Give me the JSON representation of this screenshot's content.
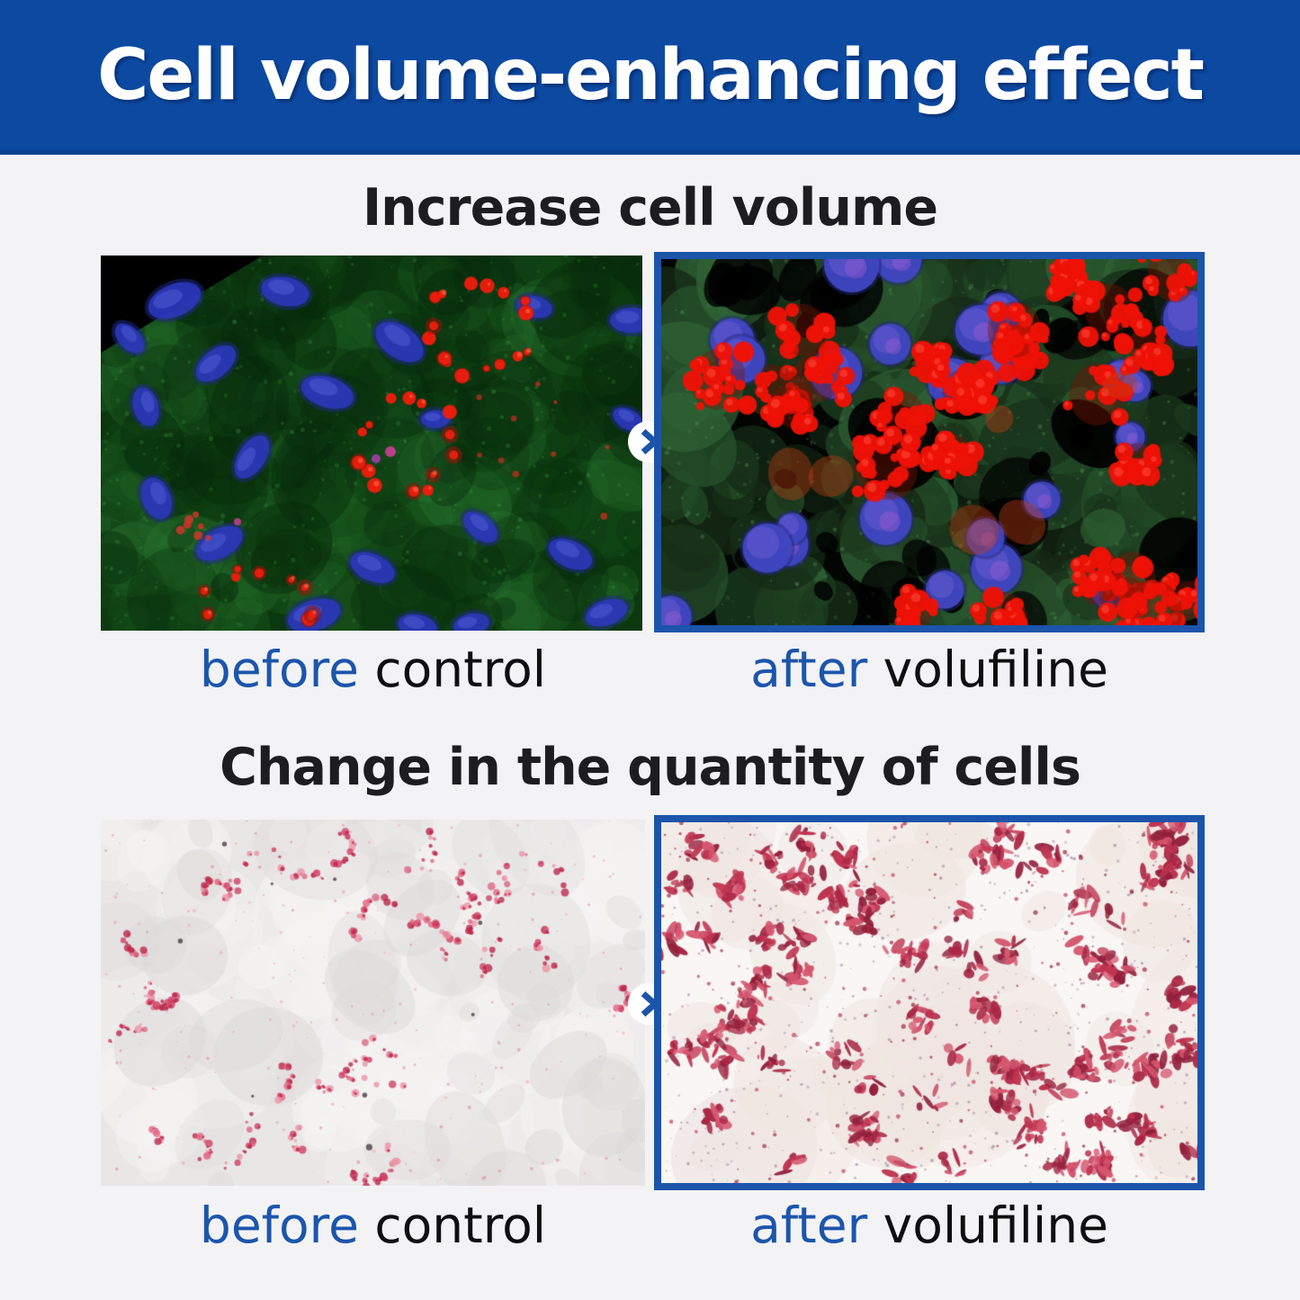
{
  "header": {
    "title": "Cell volume-enhancing effect"
  },
  "colors": {
    "banner_blue": "#0c4aa2",
    "accent_blue": "#1c55ac",
    "panel_border_blue": "#1c54ab",
    "background": "#f3f3f5",
    "title_text": "#1d1d1f",
    "label_text": "#0f0f10"
  },
  "icons": {
    "chevron_right": "❯"
  },
  "sections": [
    {
      "title": "Increase cell volume",
      "before_label": {
        "highlight": "before",
        "name": "control"
      },
      "after_label": {
        "highlight": "after",
        "name": "volufiline"
      },
      "panels": [
        {
          "alt": "Fluorescence micrograph (control): green cytoplasm, scattered blue nuclei, few small rings of red lipid droplets"
        },
        {
          "alt": "Fluorescence micrograph (after volufiline): abundant large red lipid droplet clusters around blue nuclei on dark green background"
        }
      ]
    },
    {
      "title": "Change in the quantity of cells",
      "before_label": {
        "highlight": "before",
        "name": "control"
      },
      "after_label": {
        "highlight": "after",
        "name": "volufiline"
      },
      "panels": [
        {
          "alt": "Oil Red O stained culture (control): sparse small red-stained cell clusters on pale background"
        },
        {
          "alt": "Oil Red O stained culture (after volufiline): dense red-stained cells covering the whole field"
        }
      ]
    }
  ]
}
